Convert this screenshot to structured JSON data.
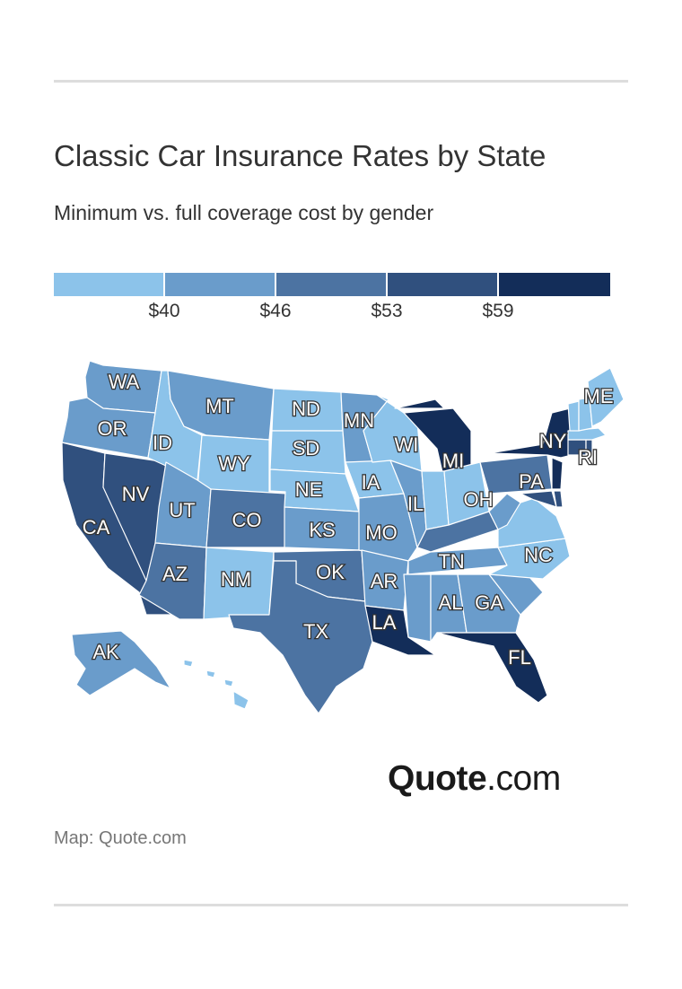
{
  "header": {
    "title": "Classic Car Insurance Rates by State",
    "subtitle": "Minimum vs. full coverage cost by gender"
  },
  "legend": {
    "colors": [
      "#8cc3ea",
      "#6a9ccb",
      "#4c73a2",
      "#30507e",
      "#132d59"
    ],
    "ticks": [
      "$40",
      "$46",
      "$53",
      "$59"
    ]
  },
  "map": {
    "states": [
      {
        "abbr": "WA",
        "bin": 1
      },
      {
        "abbr": "OR",
        "bin": 1
      },
      {
        "abbr": "CA",
        "bin": 3
      },
      {
        "abbr": "NV",
        "bin": 3
      },
      {
        "abbr": "ID",
        "bin": 0
      },
      {
        "abbr": "MT",
        "bin": 1
      },
      {
        "abbr": "WY",
        "bin": 0
      },
      {
        "abbr": "UT",
        "bin": 1
      },
      {
        "abbr": "AZ",
        "bin": 2
      },
      {
        "abbr": "CO",
        "bin": 2
      },
      {
        "abbr": "NM",
        "bin": 0
      },
      {
        "abbr": "ND",
        "bin": 0
      },
      {
        "abbr": "SD",
        "bin": 0
      },
      {
        "abbr": "NE",
        "bin": 0
      },
      {
        "abbr": "KS",
        "bin": 1
      },
      {
        "abbr": "OK",
        "bin": 2
      },
      {
        "abbr": "TX",
        "bin": 2
      },
      {
        "abbr": "MN",
        "bin": 1
      },
      {
        "abbr": "IA",
        "bin": 0
      },
      {
        "abbr": "MO",
        "bin": 1
      },
      {
        "abbr": "AR",
        "bin": 1
      },
      {
        "abbr": "LA",
        "bin": 4
      },
      {
        "abbr": "WI",
        "bin": 0
      },
      {
        "abbr": "IL",
        "bin": 1
      },
      {
        "abbr": "MI",
        "bin": 4
      },
      {
        "abbr": "IN",
        "bin": 0
      },
      {
        "abbr": "OH",
        "bin": 0
      },
      {
        "abbr": "KY",
        "bin": 2
      },
      {
        "abbr": "TN",
        "bin": 1
      },
      {
        "abbr": "MS",
        "bin": 1
      },
      {
        "abbr": "AL",
        "bin": 1
      },
      {
        "abbr": "GA",
        "bin": 1
      },
      {
        "abbr": "FL",
        "bin": 4
      },
      {
        "abbr": "SC",
        "bin": 1
      },
      {
        "abbr": "NC",
        "bin": 0
      },
      {
        "abbr": "VA",
        "bin": 0
      },
      {
        "abbr": "WV",
        "bin": 1
      },
      {
        "abbr": "PA",
        "bin": 2
      },
      {
        "abbr": "NY",
        "bin": 4
      },
      {
        "abbr": "NJ",
        "bin": 4
      },
      {
        "abbr": "MD",
        "bin": 3
      },
      {
        "abbr": "DE",
        "bin": 3
      },
      {
        "abbr": "CT",
        "bin": 3
      },
      {
        "abbr": "RI",
        "bin": 3
      },
      {
        "abbr": "MA",
        "bin": 0
      },
      {
        "abbr": "VT",
        "bin": 0
      },
      {
        "abbr": "NH",
        "bin": 0
      },
      {
        "abbr": "ME",
        "bin": 0
      },
      {
        "abbr": "AK",
        "bin": 1
      },
      {
        "abbr": "HI",
        "bin": 0
      }
    ]
  },
  "logo": {
    "brand": "Quote",
    "tld": ".com"
  },
  "source": "Map: Quote.com"
}
